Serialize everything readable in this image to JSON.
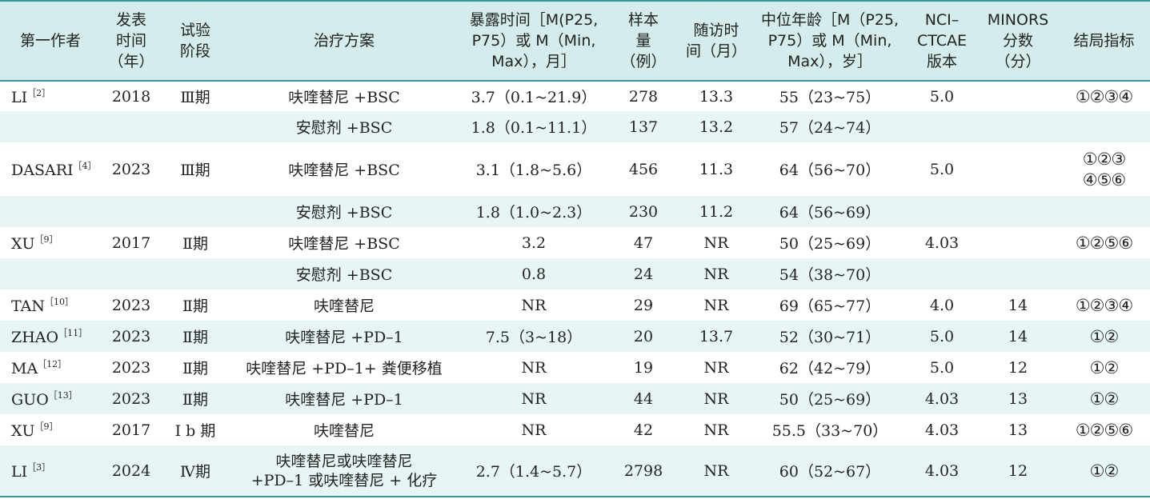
{
  "headers": {
    "author": "第一作者",
    "year": [
      "发表",
      "时间",
      "（年）"
    ],
    "phase": [
      "试验",
      "阶段"
    ],
    "scheme": "治疗方案",
    "exposure": [
      "暴露时间［M(P25,",
      "P75）或 M（Min,",
      "Max），月］"
    ],
    "sample": [
      "样本",
      "量",
      "（例）"
    ],
    "followup": [
      "随访时",
      "间（月）"
    ],
    "age": [
      "中位年龄［M（P25,",
      "P75）或 M（Min,",
      "Max），岁］"
    ],
    "ctcae": [
      "NCI–",
      "CTCAE",
      "版本"
    ],
    "minors": [
      "MINORS",
      "分数",
      "（分）"
    ],
    "outcome": "结局指标"
  },
  "rows": [
    {
      "author": "LI",
      "ref": "［2］",
      "year": "2018",
      "phase": "Ⅲ期",
      "scheme": "呋喹替尼 +BSC",
      "exposure": "3.7（0.1~21.9）",
      "sample": "278",
      "followup": "13.3",
      "age": "55（23~75）",
      "ctcae": "5.0",
      "minors": "",
      "outcome": "①②③④",
      "bg": "white"
    },
    {
      "author": "",
      "ref": "",
      "year": "",
      "phase": "",
      "scheme": "安慰剂 +BSC",
      "exposure": "1.8（0.1~11.1）",
      "sample": "137",
      "followup": "13.2",
      "age": "57（24~74）",
      "ctcae": "",
      "minors": "",
      "outcome": "",
      "bg": "tint"
    },
    {
      "author": "DASARI",
      "ref": "［4］",
      "year": "2023",
      "phase": "Ⅲ期",
      "scheme": "呋喹替尼 +BSC",
      "exposure": "3.1（1.8~5.6）",
      "sample": "456",
      "followup": "11.3",
      "age": "64（56~70）",
      "ctcae": "5.0",
      "minors": "",
      "outcome": "①②③",
      "outcome2": "④⑤⑥",
      "bg": "white"
    },
    {
      "author": "",
      "ref": "",
      "year": "",
      "phase": "",
      "scheme": "安慰剂 +BSC",
      "exposure": "1.8（1.0~2.3）",
      "sample": "230",
      "followup": "11.2",
      "age": "64（56~69）",
      "ctcae": "",
      "minors": "",
      "outcome": "",
      "bg": "tint"
    },
    {
      "author": "XU",
      "ref": "［9］",
      "year": "2017",
      "phase": "Ⅱ期",
      "scheme": "呋喹替尼 +BSC",
      "exposure": "3.2",
      "sample": "47",
      "followup": "NR",
      "age": "50（25~69）",
      "ctcae": "4.03",
      "minors": "",
      "outcome": "①②⑤⑥",
      "bg": "white"
    },
    {
      "author": "",
      "ref": "",
      "year": "",
      "phase": "",
      "scheme": "安慰剂 +BSC",
      "exposure": "0.8",
      "sample": "24",
      "followup": "NR",
      "age": "54（38~70）",
      "ctcae": "",
      "minors": "",
      "outcome": "",
      "bg": "tint"
    },
    {
      "author": "TAN",
      "ref": "［10］",
      "year": "2023",
      "phase": "Ⅱ期",
      "scheme": "呋喹替尼",
      "exposure": "NR",
      "sample": "29",
      "followup": "NR",
      "age": "69（65~77）",
      "ctcae": "4.0",
      "minors": "14",
      "outcome": "①②③④",
      "bg": "white"
    },
    {
      "author": "ZHAO",
      "ref": "［11］",
      "year": "2023",
      "phase": "Ⅱ期",
      "scheme": "呋喹替尼 +PD–1",
      "exposure": "7.5（3~18）",
      "sample": "20",
      "followup": "13.7",
      "age": "52（30~71）",
      "ctcae": "5.0",
      "minors": "14",
      "outcome": "①②",
      "bg": "tint"
    },
    {
      "author": "MA",
      "ref": "［12］",
      "year": "2023",
      "phase": "Ⅱ期",
      "scheme": "呋喹替尼 +PD–1+ 粪便移植",
      "exposure": "NR",
      "sample": "19",
      "followup": "NR",
      "age": "62（42~79）",
      "ctcae": "5.0",
      "minors": "12",
      "outcome": "①②",
      "bg": "white"
    },
    {
      "author": "GUO",
      "ref": "［13］",
      "year": "2023",
      "phase": "Ⅱ期",
      "scheme": "呋喹替尼 +PD–1",
      "exposure": "NR",
      "sample": "44",
      "followup": "NR",
      "age": "50（25~69）",
      "ctcae": "4.03",
      "minors": "13",
      "outcome": "①②",
      "bg": "tint"
    },
    {
      "author": "XU",
      "ref": "［9］",
      "year": "2017",
      "phase": "Ⅰ b 期",
      "scheme": "呋喹替尼",
      "exposure": "NR",
      "sample": "42",
      "followup": "NR",
      "age": "55.5（33~70）",
      "ctcae": "4.03",
      "minors": "13",
      "outcome": "①②⑤⑥",
      "bg": "white"
    },
    {
      "author": "LI",
      "ref": "［3］",
      "year": "2024",
      "phase": "Ⅳ期",
      "scheme": "呋喹替尼或呋喹替尼",
      "scheme2": "+PD–1 或呋喹替尼 + 化疗",
      "exposure": "2.7（1.4~5.7）",
      "sample": "2798",
      "followup": "NR",
      "age": "60（52~67）",
      "ctcae": "4.03",
      "minors": "12",
      "outcome": "①②",
      "bg": "tint"
    }
  ]
}
